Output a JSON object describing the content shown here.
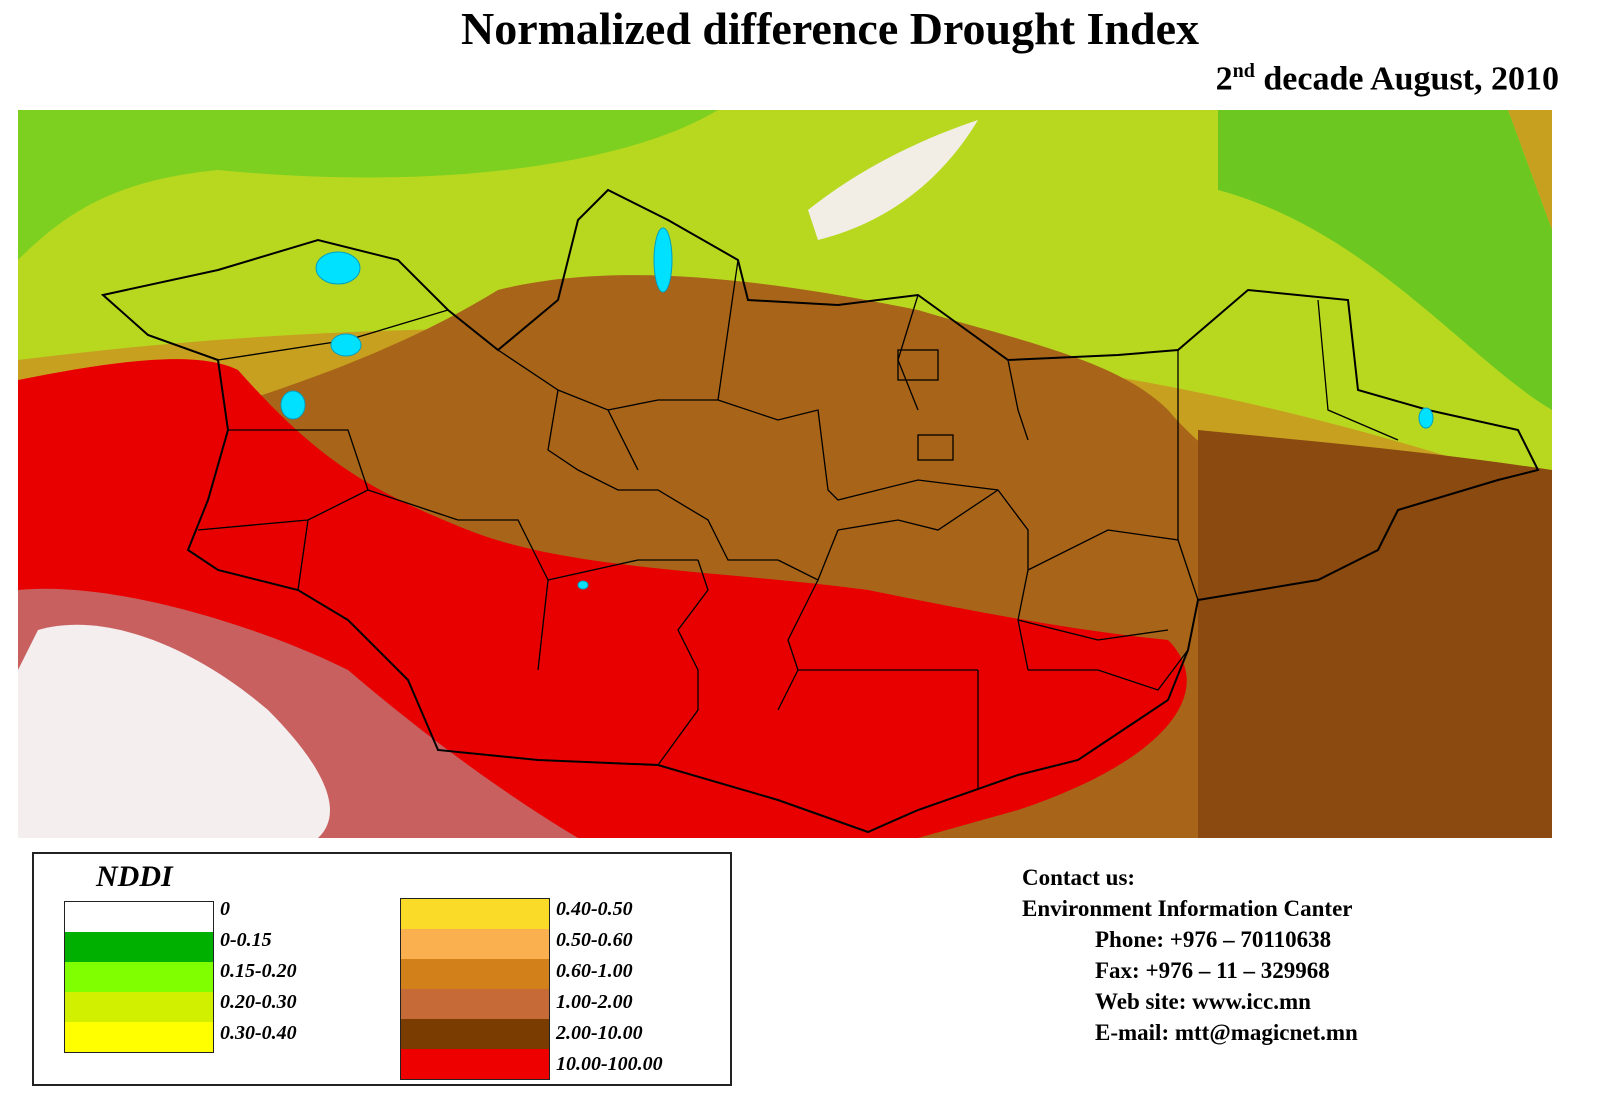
{
  "title": "Normalized difference Drought Index",
  "subtitle": {
    "ordinal": "2",
    "suffix": "nd",
    "rest": " decade August, 2010"
  },
  "legend": {
    "title": "NDDI",
    "left": [
      {
        "label": "0",
        "color": "#ffffff"
      },
      {
        "label": "0-0.15",
        "color": "#00b000"
      },
      {
        "label": "0.15-0.20",
        "color": "#80ff00"
      },
      {
        "label": "0.20-0.30",
        "color": "#d0f000"
      },
      {
        "label": "0.30-0.40",
        "color": "#ffff00"
      }
    ],
    "right": [
      {
        "label": "0.40-0.50",
        "color": "#fadc28"
      },
      {
        "label": "0.50-0.60",
        "color": "#fbb050"
      },
      {
        "label": "0.60-1.00",
        "color": "#d2801a"
      },
      {
        "label": "1.00-2.00",
        "color": "#c66a38"
      },
      {
        "label": "2.00-10.00",
        "color": "#7a3c00"
      },
      {
        "label": "10.00-100.00",
        "color": "#ee0000"
      }
    ]
  },
  "contact": {
    "heading": "Contact us:",
    "org": "Environment Information Canter",
    "phone": "Phone: +976 – 70110638",
    "fax": "Fax: +976 – 11 – 329968",
    "web": "Web site: www.icc.mn",
    "email": "E-mail: mtt@magicnet.mn"
  }
}
